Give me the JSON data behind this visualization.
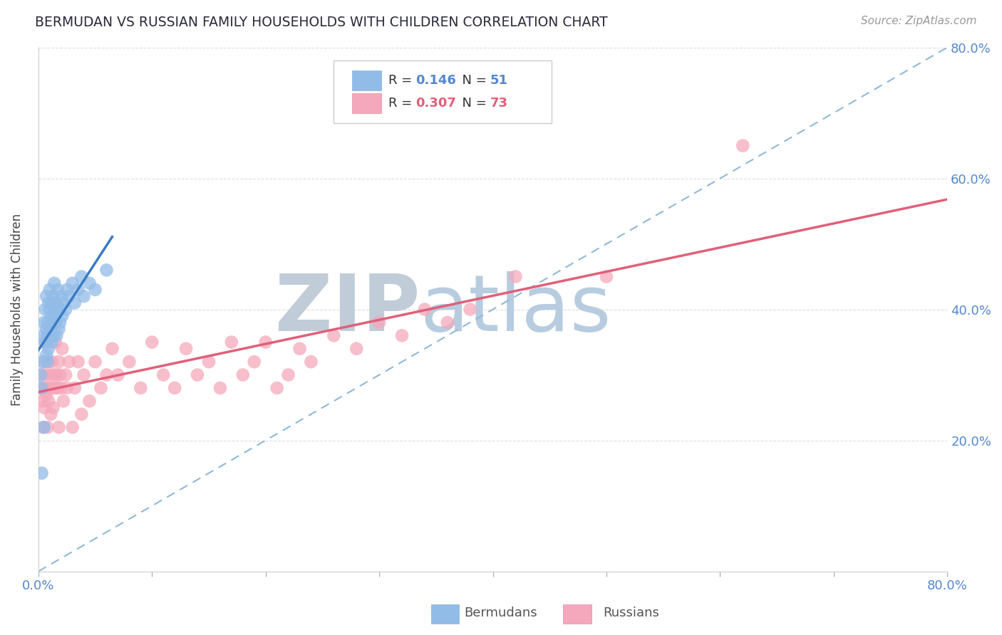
{
  "title": "BERMUDAN VS RUSSIAN FAMILY HOUSEHOLDS WITH CHILDREN CORRELATION CHART",
  "source": "Source: ZipAtlas.com",
  "ylabel": "Family Households with Children",
  "legend_bermudans": "Bermudans",
  "legend_russians": "Russians",
  "R_bermudans": "0.146",
  "N_bermudans": "51",
  "R_russians": "0.307",
  "N_russians": "73",
  "xlim": [
    0.0,
    0.8
  ],
  "ylim": [
    0.0,
    0.8
  ],
  "ytick_labels": [
    "20.0%",
    "40.0%",
    "60.0%",
    "80.0%"
  ],
  "color_bermudans": "#92bce8",
  "color_russians": "#f5a8bb",
  "line_color_bermudans": "#3a7cc4",
  "line_color_russians": "#e0607a",
  "dashed_line_color": "#90b8d8",
  "background_color": "#ffffff",
  "watermark_zip": "ZIP",
  "watermark_atlas": "atlas",
  "watermark_color_zip": "#c0ccd8",
  "watermark_color_atlas": "#b8cce0",
  "tick_color": "#5588cc",
  "grid_color": "#dddddd",
  "bermudans_x": [
    0.002,
    0.003,
    0.004,
    0.005,
    0.005,
    0.006,
    0.006,
    0.007,
    0.007,
    0.007,
    0.008,
    0.008,
    0.008,
    0.009,
    0.009,
    0.01,
    0.01,
    0.01,
    0.011,
    0.011,
    0.012,
    0.012,
    0.012,
    0.013,
    0.013,
    0.014,
    0.014,
    0.015,
    0.015,
    0.016,
    0.016,
    0.017,
    0.018,
    0.018,
    0.019,
    0.02,
    0.021,
    0.022,
    0.024,
    0.025,
    0.027,
    0.03,
    0.032,
    0.035,
    0.038,
    0.04,
    0.045,
    0.05,
    0.06,
    0.005,
    0.003
  ],
  "bermudans_y": [
    0.3,
    0.28,
    0.32,
    0.36,
    0.38,
    0.35,
    0.4,
    0.37,
    0.33,
    0.42,
    0.36,
    0.38,
    0.32,
    0.41,
    0.34,
    0.4,
    0.36,
    0.43,
    0.37,
    0.39,
    0.38,
    0.41,
    0.35,
    0.42,
    0.36,
    0.39,
    0.44,
    0.38,
    0.4,
    0.41,
    0.36,
    0.43,
    0.37,
    0.4,
    0.38,
    0.42,
    0.39,
    0.41,
    0.4,
    0.43,
    0.42,
    0.44,
    0.41,
    0.43,
    0.45,
    0.42,
    0.44,
    0.43,
    0.46,
    0.22,
    0.15
  ],
  "russians_x": [
    0.002,
    0.003,
    0.004,
    0.004,
    0.005,
    0.005,
    0.006,
    0.006,
    0.007,
    0.007,
    0.008,
    0.008,
    0.009,
    0.009,
    0.01,
    0.01,
    0.011,
    0.011,
    0.012,
    0.012,
    0.013,
    0.014,
    0.015,
    0.015,
    0.016,
    0.017,
    0.018,
    0.018,
    0.019,
    0.02,
    0.021,
    0.022,
    0.024,
    0.025,
    0.027,
    0.03,
    0.032,
    0.035,
    0.038,
    0.04,
    0.045,
    0.05,
    0.055,
    0.06,
    0.065,
    0.07,
    0.08,
    0.09,
    0.1,
    0.11,
    0.12,
    0.13,
    0.14,
    0.15,
    0.16,
    0.17,
    0.18,
    0.19,
    0.2,
    0.21,
    0.22,
    0.23,
    0.24,
    0.26,
    0.28,
    0.3,
    0.32,
    0.34,
    0.36,
    0.38,
    0.42,
    0.5,
    0.62
  ],
  "russians_y": [
    0.28,
    0.3,
    0.22,
    0.26,
    0.25,
    0.32,
    0.28,
    0.35,
    0.27,
    0.3,
    0.22,
    0.28,
    0.32,
    0.26,
    0.28,
    0.35,
    0.3,
    0.24,
    0.32,
    0.28,
    0.25,
    0.3,
    0.28,
    0.35,
    0.3,
    0.28,
    0.32,
    0.22,
    0.3,
    0.28,
    0.34,
    0.26,
    0.3,
    0.28,
    0.32,
    0.22,
    0.28,
    0.32,
    0.24,
    0.3,
    0.26,
    0.32,
    0.28,
    0.3,
    0.34,
    0.3,
    0.32,
    0.28,
    0.35,
    0.3,
    0.28,
    0.34,
    0.3,
    0.32,
    0.28,
    0.35,
    0.3,
    0.32,
    0.35,
    0.28,
    0.3,
    0.34,
    0.32,
    0.36,
    0.34,
    0.38,
    0.36,
    0.4,
    0.38,
    0.4,
    0.45,
    0.45,
    0.65
  ]
}
